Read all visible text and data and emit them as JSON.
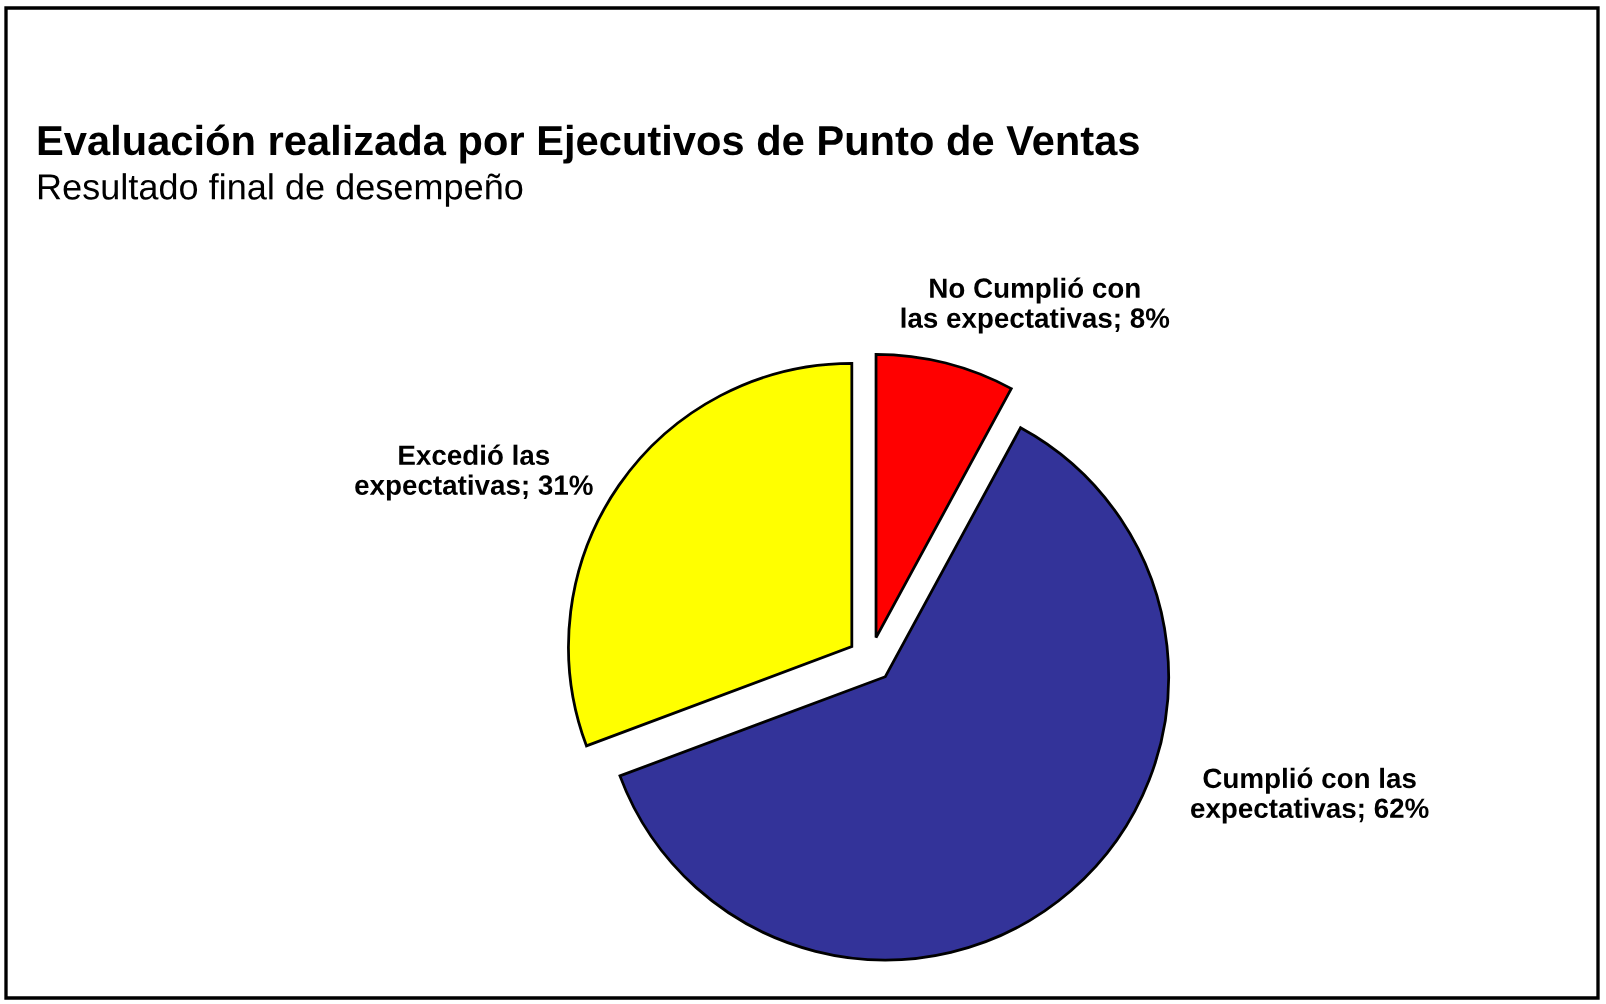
{
  "chart_data": {
    "type": "pie",
    "title": "Evaluación realizada por Ejecutivos de Punto de Ventas",
    "subtitle": "Resultado final de desempeño",
    "categories": [
      "No Cumplió con las expectativas",
      "Cumplió con las expectativas",
      "Excedió las expectativas"
    ],
    "values": [
      8,
      62,
      31
    ],
    "value_labels": [
      "8%",
      "62%",
      "31%"
    ],
    "colors": [
      "#ff0000",
      "#333399",
      "#ffff00"
    ],
    "legend": false
  }
}
